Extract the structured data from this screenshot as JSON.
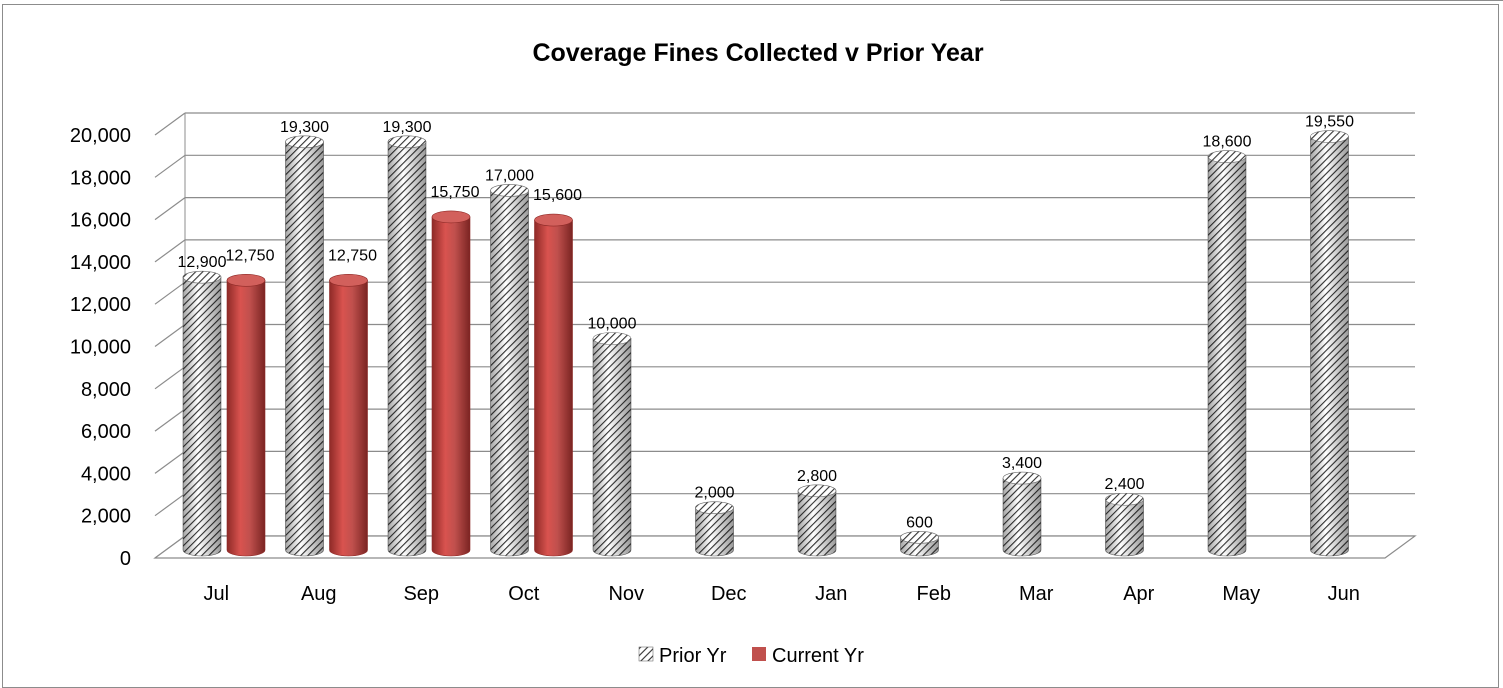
{
  "chart_data": {
    "type": "bar",
    "title": "Coverage Fines Collected v Prior Year",
    "xlabel": "",
    "ylabel": "",
    "categories": [
      "Jul",
      "Aug",
      "Sep",
      "Oct",
      "Nov",
      "Dec",
      "Jan",
      "Feb",
      "Mar",
      "Apr",
      "May",
      "Jun"
    ],
    "series": [
      {
        "name": "Prior Yr",
        "values": [
          12900,
          19300,
          19300,
          17000,
          10000,
          2000,
          2800,
          600,
          3400,
          2400,
          18600,
          19550
        ],
        "labels": [
          "12,900",
          "19,300",
          "19,300",
          "17,000",
          "10,000",
          "2,000",
          "2,800",
          "600",
          "3,400",
          "2,400",
          "18,600",
          "19,550"
        ],
        "color": "#555555",
        "pattern": "diagonal-hatch"
      },
      {
        "name": "Current Yr",
        "values": [
          12750,
          12750,
          15750,
          15600,
          null,
          null,
          null,
          null,
          null,
          null,
          null,
          null
        ],
        "labels": [
          "12,750",
          "12,750",
          "15,750",
          "15,600",
          "",
          "",
          "",
          "",
          "",
          "",
          "",
          ""
        ],
        "color": "#c0504d"
      }
    ],
    "ylim": [
      0,
      20000
    ],
    "yticks": [
      "0",
      "2,000",
      "4,000",
      "6,000",
      "8,000",
      "10,000",
      "12,000",
      "14,000",
      "16,000",
      "18,000",
      "20,000"
    ],
    "grid": true,
    "legend": "bottom",
    "style": "3d-cylinder"
  }
}
